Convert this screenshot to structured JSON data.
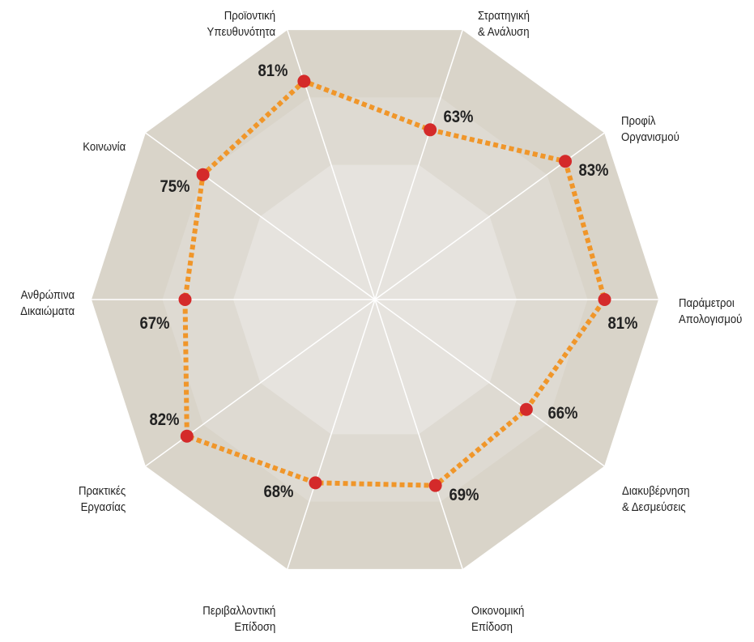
{
  "chart_data": {
    "type": "radar",
    "categories": [
      "Στρατηγική\n& Ανάλυση",
      "Προφίλ\nΟργανισμού",
      "Παράμετροι\nΑπολογισμού",
      "Διακυβέρνηση\n& Δεσμεύσεις",
      "Οικονομική\nΕπίδοση",
      "Περιβαλλοντική\nΕπίδοση",
      "Πρακτικές\nΕργασίας",
      "Ανθρώπινα\nΔικαιώματα",
      "Κοινωνία",
      "Προϊοντική\nΥπευθυνότητα"
    ],
    "values": [
      63,
      83,
      81,
      66,
      69,
      68,
      82,
      67,
      75,
      81
    ],
    "value_labels": [
      "63%",
      "83%",
      "81%",
      "66%",
      "69%",
      "68%",
      "82%",
      "67%",
      "75%",
      "81%"
    ],
    "rlim": [
      0,
      100
    ],
    "color": "#f0962a",
    "marker_color": "#d42a2a"
  }
}
